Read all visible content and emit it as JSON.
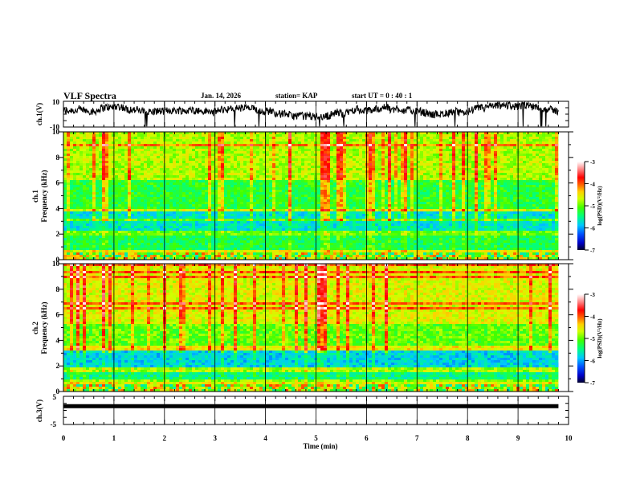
{
  "header": {
    "title": "VLF Spectra",
    "date": "Jan. 14, 2026",
    "station": "station= KAP",
    "start": "start  UT =   0  : 40 : 1"
  },
  "chart_data": [
    {
      "type": "line",
      "panel": "ch1-waveform",
      "ylabel": "ch.1(V)",
      "ylim": [
        -10,
        10
      ],
      "yticks": [
        "10",
        "-10"
      ],
      "xlim": [
        0,
        10
      ],
      "data_end_min": 9.8,
      "description_values": "noisy waveform fluctuating roughly between -8 and 8 V"
    },
    {
      "type": "heatmap",
      "panel": "ch1-spectrogram",
      "ylabel": "ch.1\nFrequency (kHz)",
      "ylabel_line1": "ch.1",
      "ylabel_line2": "Frequency (kHz)",
      "ylim": [
        0,
        10
      ],
      "yticks": [
        "0",
        "2",
        "4",
        "6",
        "8",
        "10"
      ],
      "xlim": [
        0,
        10
      ],
      "data_end_min": 9.8,
      "colorbar": {
        "label": "log(PSD)(V²/Hz)",
        "range": [
          -7,
          -3
        ],
        "ticks": [
          "-3",
          "-4",
          "-5",
          "-6",
          "-7"
        ]
      }
    },
    {
      "type": "heatmap",
      "panel": "ch2-spectrogram",
      "ylabel_line1": "ch.2",
      "ylabel_line2": "Frequency (kHz)",
      "ylim": [
        0,
        10
      ],
      "yticks": [
        "0",
        "2",
        "4",
        "6",
        "8",
        "10"
      ],
      "xlim": [
        0,
        10
      ],
      "data_end_min": 9.8,
      "colorbar": {
        "label": "log(PSD)(V²/Hz)",
        "range": [
          -7,
          -3
        ],
        "ticks": [
          "-3",
          "-4",
          "-5",
          "-6",
          "-7"
        ]
      }
    },
    {
      "type": "line",
      "panel": "ch3-waveform",
      "ylabel": "ch.3(V)",
      "ylim": [
        -5,
        5
      ],
      "yticks": [
        "5",
        "-5"
      ],
      "xlim": [
        0,
        10
      ],
      "data_end_min": 9.8,
      "level": 1.5
    }
  ],
  "xaxis": {
    "label": "Time  (min)",
    "ticks": [
      "0",
      "1",
      "2",
      "3",
      "4",
      "5",
      "6",
      "7",
      "8",
      "9",
      "10"
    ]
  },
  "colors": {
    "frame": "#000000",
    "colormap": [
      "#000030",
      "#0000ff",
      "#00a0ff",
      "#00ffc0",
      "#00ff00",
      "#c0ff00",
      "#ffff00",
      "#ff8000",
      "#ff0000",
      "#ff8080",
      "#ffffff"
    ]
  }
}
